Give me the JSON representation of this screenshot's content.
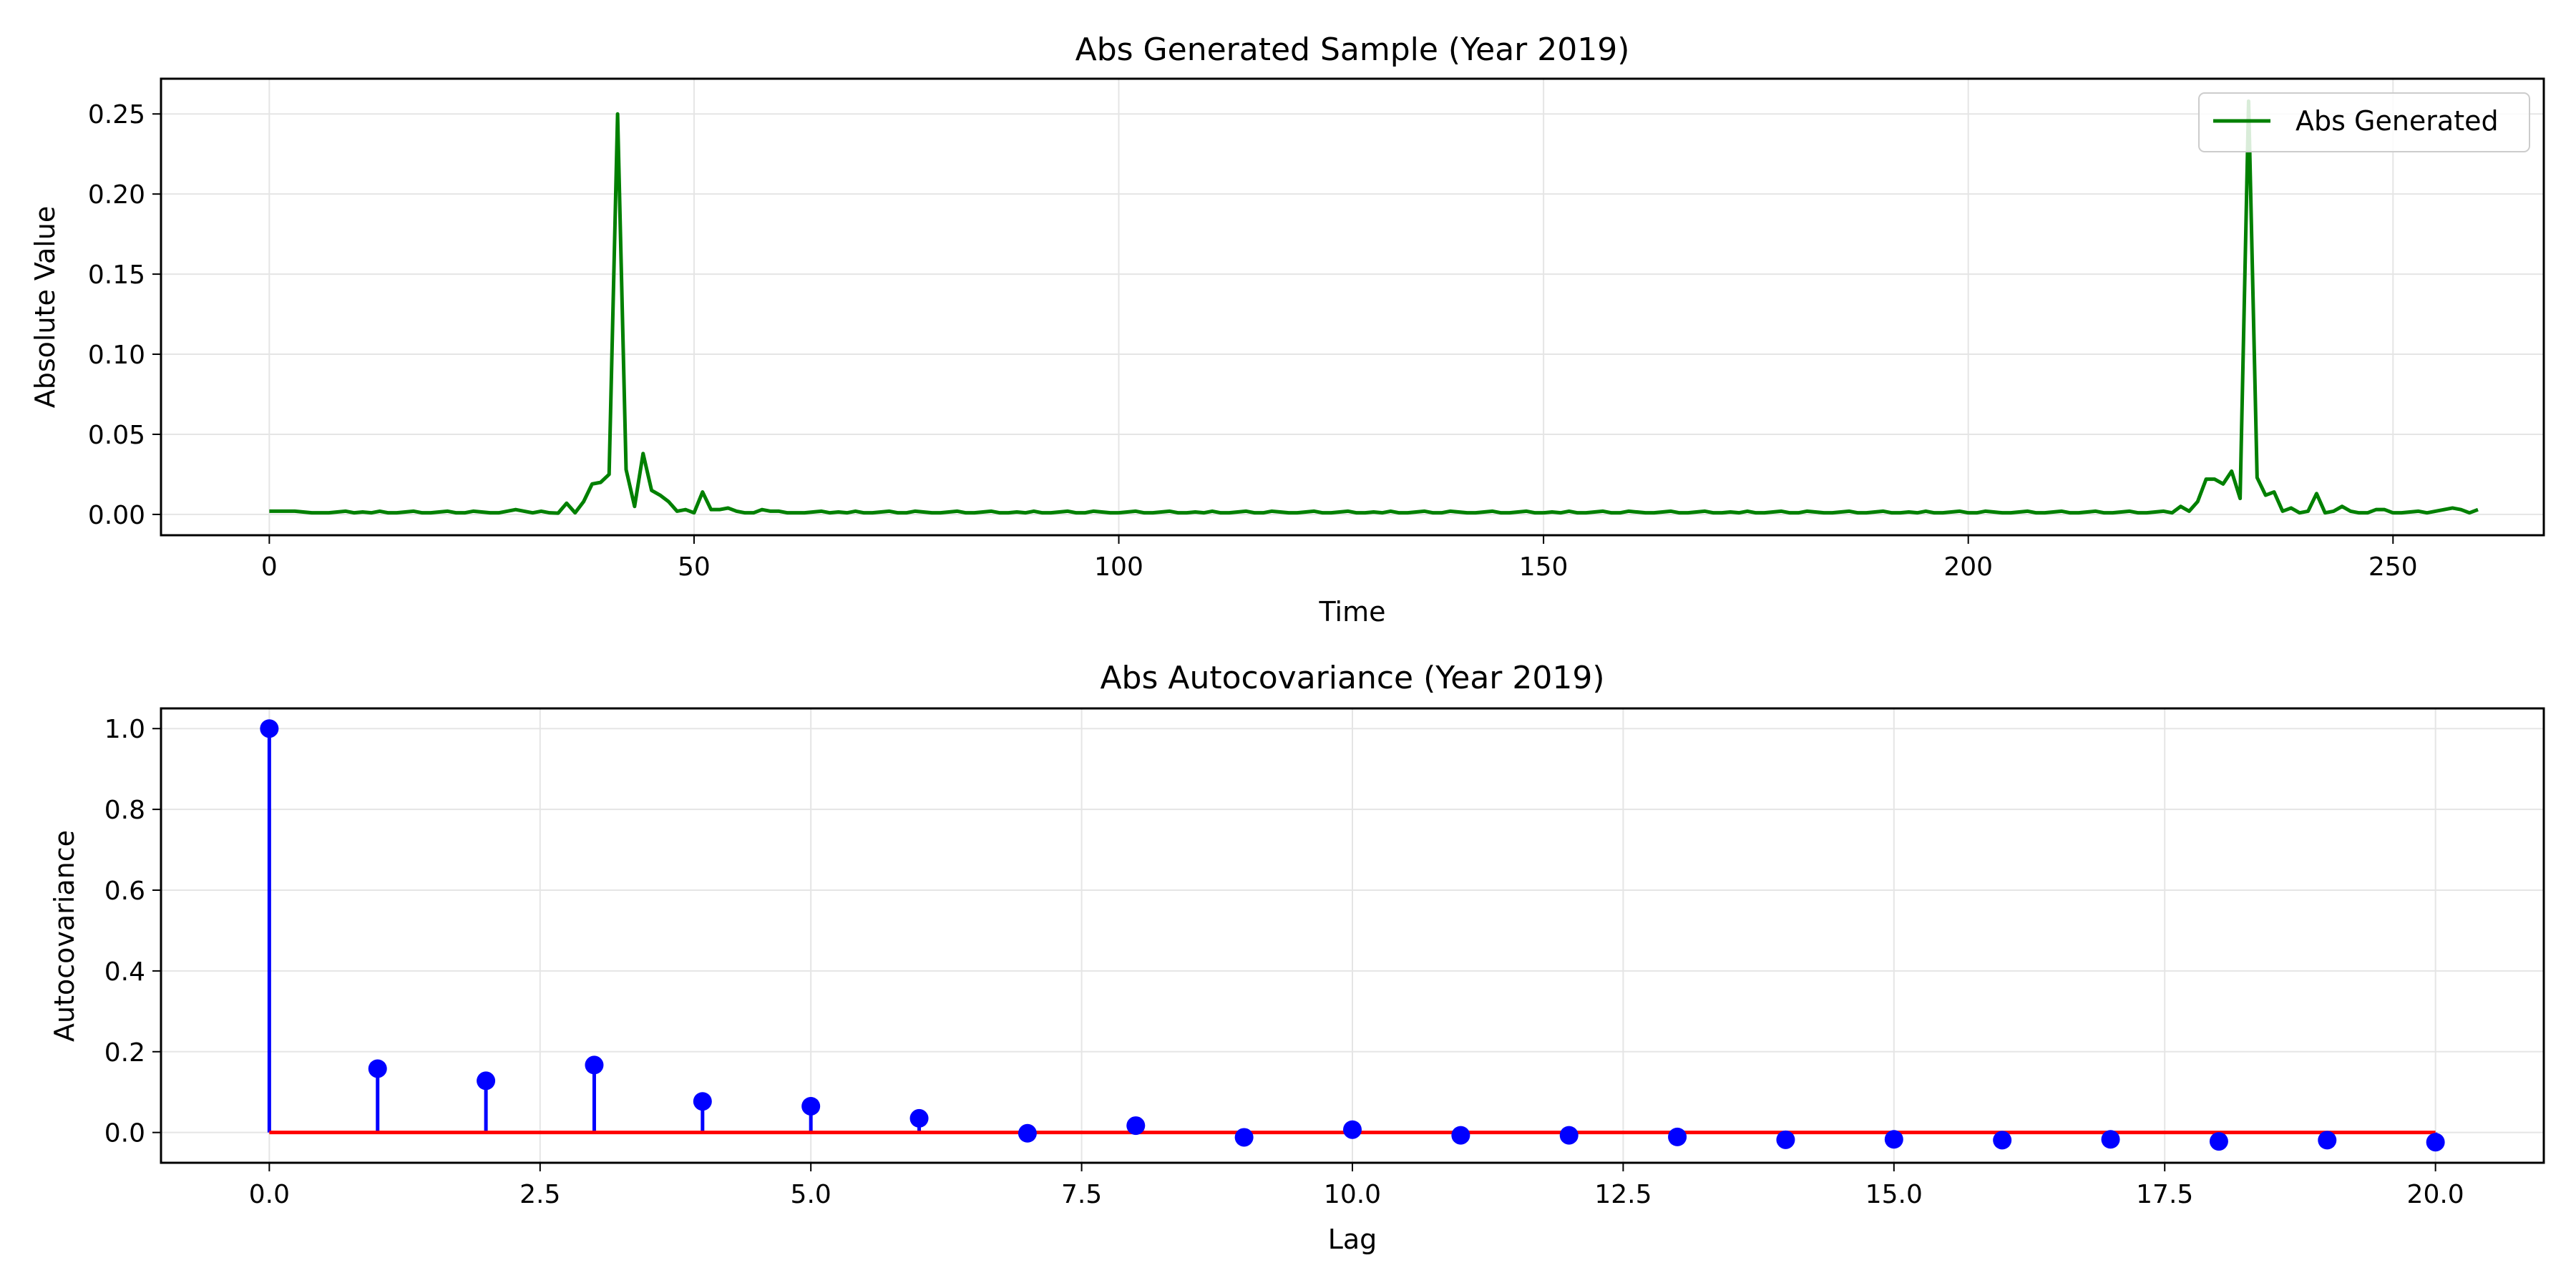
{
  "chart_data": [
    {
      "type": "line",
      "title": "Abs Generated Sample (Year 2019)",
      "xlabel": "Time",
      "ylabel": "Absolute Value",
      "xlim": [
        -12.75,
        267.75
      ],
      "ylim": [
        -0.013,
        0.272
      ],
      "xticks": [
        0,
        50,
        100,
        150,
        200,
        250
      ],
      "xtick_labels": [
        "0",
        "50",
        "100",
        "150",
        "200",
        "250"
      ],
      "yticks": [
        0.0,
        0.05,
        0.1,
        0.15,
        0.2,
        0.25
      ],
      "ytick_labels": [
        "0.00",
        "0.05",
        "0.10",
        "0.15",
        "0.20",
        "0.25"
      ],
      "grid": true,
      "legend": "upper right",
      "series": [
        {
          "name": "Abs Generated",
          "color": "#008000",
          "x_start": 0,
          "x_step": 1,
          "values": [
            0.002,
            0.002,
            0.002,
            0.002,
            0.0015,
            0.001,
            0.001,
            0.001,
            0.0015,
            0.002,
            0.001,
            0.0015,
            0.001,
            0.002,
            0.001,
            0.001,
            0.0015,
            0.002,
            0.001,
            0.001,
            0.0015,
            0.002,
            0.001,
            0.001,
            0.002,
            0.0015,
            0.001,
            0.001,
            0.002,
            0.003,
            0.002,
            0.001,
            0.002,
            0.001,
            0.0008,
            0.007,
            0.001,
            0.008,
            0.019,
            0.02,
            0.025,
            0.25,
            0.028,
            0.005,
            0.038,
            0.015,
            0.012,
            0.008,
            0.002,
            0.003,
            0.001,
            0.014,
            0.003,
            0.003,
            0.004,
            0.002,
            0.001,
            0.001,
            0.003,
            0.002,
            0.002,
            0.001,
            0.001,
            0.001,
            0.0015,
            0.002,
            0.001,
            0.0015,
            0.001,
            0.002,
            0.001,
            0.001,
            0.0015,
            0.002,
            0.001,
            0.001,
            0.002,
            0.0015,
            0.001,
            0.001,
            0.0015,
            0.002,
            0.001,
            0.001,
            0.0015,
            0.002,
            0.001,
            0.001,
            0.0015,
            0.001,
            0.002,
            0.001,
            0.001,
            0.0015,
            0.002,
            0.001,
            0.001,
            0.002,
            0.0015,
            0.001,
            0.001,
            0.0015,
            0.002,
            0.001,
            0.001,
            0.0015,
            0.002,
            0.001,
            0.001,
            0.0015,
            0.001,
            0.002,
            0.001,
            0.001,
            0.0015,
            0.002,
            0.001,
            0.001,
            0.002,
            0.0015,
            0.001,
            0.001,
            0.0015,
            0.002,
            0.001,
            0.001,
            0.0015,
            0.002,
            0.001,
            0.001,
            0.0015,
            0.001,
            0.002,
            0.001,
            0.001,
            0.0015,
            0.002,
            0.001,
            0.001,
            0.002,
            0.0015,
            0.001,
            0.001,
            0.0015,
            0.002,
            0.001,
            0.001,
            0.0015,
            0.002,
            0.001,
            0.001,
            0.0015,
            0.001,
            0.002,
            0.001,
            0.001,
            0.0015,
            0.002,
            0.001,
            0.001,
            0.002,
            0.0015,
            0.001,
            0.001,
            0.0015,
            0.002,
            0.001,
            0.001,
            0.0015,
            0.002,
            0.001,
            0.001,
            0.0015,
            0.001,
            0.002,
            0.001,
            0.001,
            0.0015,
            0.002,
            0.001,
            0.001,
            0.002,
            0.0015,
            0.001,
            0.001,
            0.0015,
            0.002,
            0.001,
            0.001,
            0.0015,
            0.002,
            0.001,
            0.001,
            0.0015,
            0.001,
            0.002,
            0.001,
            0.001,
            0.0015,
            0.002,
            0.001,
            0.001,
            0.002,
            0.0015,
            0.001,
            0.001,
            0.0015,
            0.002,
            0.001,
            0.001,
            0.0015,
            0.002,
            0.001,
            0.001,
            0.0015,
            0.002,
            0.001,
            0.001,
            0.0015,
            0.002,
            0.001,
            0.001,
            0.0015,
            0.002,
            0.001,
            0.005,
            0.002,
            0.008,
            0.022,
            0.022,
            0.019,
            0.027,
            0.01,
            0.258,
            0.023,
            0.012,
            0.014,
            0.002,
            0.004,
            0.001,
            0.002,
            0.013,
            0.001,
            0.002,
            0.005,
            0.002,
            0.001,
            0.001,
            0.003,
            0.003,
            0.001,
            0.001,
            0.0015,
            0.002,
            0.001,
            0.002,
            0.003,
            0.004,
            0.003,
            0.001,
            0.003
          ]
        }
      ]
    },
    {
      "type": "stem",
      "title": "Abs Autocovariance (Year 2019)",
      "xlabel": "Lag",
      "ylabel": "Autocovariance",
      "xlim": [
        -1.0,
        21.0
      ],
      "ylim": [
        -0.075,
        1.05
      ],
      "xticks": [
        0.0,
        2.5,
        5.0,
        7.5,
        10.0,
        12.5,
        15.0,
        17.5,
        20.0
      ],
      "xtick_labels": [
        "0.0",
        "2.5",
        "5.0",
        "7.5",
        "10.0",
        "12.5",
        "15.0",
        "17.5",
        "20.0"
      ],
      "yticks": [
        0.0,
        0.2,
        0.4,
        0.6,
        0.8,
        1.0
      ],
      "ytick_labels": [
        "0.0",
        "0.2",
        "0.4",
        "0.6",
        "0.8",
        "1.0"
      ],
      "grid": true,
      "baseline": 0.0,
      "baseline_color": "#ff0000",
      "stem_color": "#0000ff",
      "marker_color": "#0000ff",
      "x": [
        0,
        1,
        2,
        3,
        4,
        5,
        6,
        7,
        8,
        9,
        10,
        11,
        12,
        13,
        14,
        15,
        16,
        17,
        18,
        19,
        20
      ],
      "values": [
        1.0,
        0.158,
        0.128,
        0.167,
        0.077,
        0.065,
        0.035,
        -0.002,
        0.017,
        -0.012,
        0.007,
        -0.007,
        -0.007,
        -0.011,
        -0.018,
        -0.017,
        -0.019,
        -0.017,
        -0.022,
        -0.019,
        -0.024
      ]
    }
  ]
}
